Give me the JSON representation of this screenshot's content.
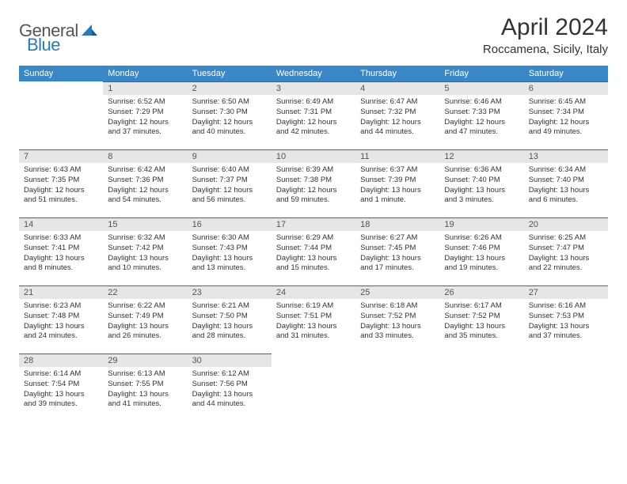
{
  "brand": {
    "general": "General",
    "blue": "Blue"
  },
  "title": "April 2024",
  "subtitle": "Roccamena, Sicily, Italy",
  "colors": {
    "header_bg": "#3a87c8",
    "header_text": "#ffffff",
    "daynum_bg": "#e6e6e6",
    "daynum_border": "#2a6ca0",
    "body_text": "#333333",
    "brand_gray": "#555555",
    "brand_blue": "#2a7ab9"
  },
  "day_labels": [
    "Sunday",
    "Monday",
    "Tuesday",
    "Wednesday",
    "Thursday",
    "Friday",
    "Saturday"
  ],
  "weeks": [
    [
      null,
      {
        "n": "1",
        "sr": "Sunrise: 6:52 AM",
        "ss": "Sunset: 7:29 PM",
        "d1": "Daylight: 12 hours",
        "d2": "and 37 minutes."
      },
      {
        "n": "2",
        "sr": "Sunrise: 6:50 AM",
        "ss": "Sunset: 7:30 PM",
        "d1": "Daylight: 12 hours",
        "d2": "and 40 minutes."
      },
      {
        "n": "3",
        "sr": "Sunrise: 6:49 AM",
        "ss": "Sunset: 7:31 PM",
        "d1": "Daylight: 12 hours",
        "d2": "and 42 minutes."
      },
      {
        "n": "4",
        "sr": "Sunrise: 6:47 AM",
        "ss": "Sunset: 7:32 PM",
        "d1": "Daylight: 12 hours",
        "d2": "and 44 minutes."
      },
      {
        "n": "5",
        "sr": "Sunrise: 6:46 AM",
        "ss": "Sunset: 7:33 PM",
        "d1": "Daylight: 12 hours",
        "d2": "and 47 minutes."
      },
      {
        "n": "6",
        "sr": "Sunrise: 6:45 AM",
        "ss": "Sunset: 7:34 PM",
        "d1": "Daylight: 12 hours",
        "d2": "and 49 minutes."
      }
    ],
    [
      {
        "n": "7",
        "sr": "Sunrise: 6:43 AM",
        "ss": "Sunset: 7:35 PM",
        "d1": "Daylight: 12 hours",
        "d2": "and 51 minutes."
      },
      {
        "n": "8",
        "sr": "Sunrise: 6:42 AM",
        "ss": "Sunset: 7:36 PM",
        "d1": "Daylight: 12 hours",
        "d2": "and 54 minutes."
      },
      {
        "n": "9",
        "sr": "Sunrise: 6:40 AM",
        "ss": "Sunset: 7:37 PM",
        "d1": "Daylight: 12 hours",
        "d2": "and 56 minutes."
      },
      {
        "n": "10",
        "sr": "Sunrise: 6:39 AM",
        "ss": "Sunset: 7:38 PM",
        "d1": "Daylight: 12 hours",
        "d2": "and 59 minutes."
      },
      {
        "n": "11",
        "sr": "Sunrise: 6:37 AM",
        "ss": "Sunset: 7:39 PM",
        "d1": "Daylight: 13 hours",
        "d2": "and 1 minute."
      },
      {
        "n": "12",
        "sr": "Sunrise: 6:36 AM",
        "ss": "Sunset: 7:40 PM",
        "d1": "Daylight: 13 hours",
        "d2": "and 3 minutes."
      },
      {
        "n": "13",
        "sr": "Sunrise: 6:34 AM",
        "ss": "Sunset: 7:40 PM",
        "d1": "Daylight: 13 hours",
        "d2": "and 6 minutes."
      }
    ],
    [
      {
        "n": "14",
        "sr": "Sunrise: 6:33 AM",
        "ss": "Sunset: 7:41 PM",
        "d1": "Daylight: 13 hours",
        "d2": "and 8 minutes."
      },
      {
        "n": "15",
        "sr": "Sunrise: 6:32 AM",
        "ss": "Sunset: 7:42 PM",
        "d1": "Daylight: 13 hours",
        "d2": "and 10 minutes."
      },
      {
        "n": "16",
        "sr": "Sunrise: 6:30 AM",
        "ss": "Sunset: 7:43 PM",
        "d1": "Daylight: 13 hours",
        "d2": "and 13 minutes."
      },
      {
        "n": "17",
        "sr": "Sunrise: 6:29 AM",
        "ss": "Sunset: 7:44 PM",
        "d1": "Daylight: 13 hours",
        "d2": "and 15 minutes."
      },
      {
        "n": "18",
        "sr": "Sunrise: 6:27 AM",
        "ss": "Sunset: 7:45 PM",
        "d1": "Daylight: 13 hours",
        "d2": "and 17 minutes."
      },
      {
        "n": "19",
        "sr": "Sunrise: 6:26 AM",
        "ss": "Sunset: 7:46 PM",
        "d1": "Daylight: 13 hours",
        "d2": "and 19 minutes."
      },
      {
        "n": "20",
        "sr": "Sunrise: 6:25 AM",
        "ss": "Sunset: 7:47 PM",
        "d1": "Daylight: 13 hours",
        "d2": "and 22 minutes."
      }
    ],
    [
      {
        "n": "21",
        "sr": "Sunrise: 6:23 AM",
        "ss": "Sunset: 7:48 PM",
        "d1": "Daylight: 13 hours",
        "d2": "and 24 minutes."
      },
      {
        "n": "22",
        "sr": "Sunrise: 6:22 AM",
        "ss": "Sunset: 7:49 PM",
        "d1": "Daylight: 13 hours",
        "d2": "and 26 minutes."
      },
      {
        "n": "23",
        "sr": "Sunrise: 6:21 AM",
        "ss": "Sunset: 7:50 PM",
        "d1": "Daylight: 13 hours",
        "d2": "and 28 minutes."
      },
      {
        "n": "24",
        "sr": "Sunrise: 6:19 AM",
        "ss": "Sunset: 7:51 PM",
        "d1": "Daylight: 13 hours",
        "d2": "and 31 minutes."
      },
      {
        "n": "25",
        "sr": "Sunrise: 6:18 AM",
        "ss": "Sunset: 7:52 PM",
        "d1": "Daylight: 13 hours",
        "d2": "and 33 minutes."
      },
      {
        "n": "26",
        "sr": "Sunrise: 6:17 AM",
        "ss": "Sunset: 7:52 PM",
        "d1": "Daylight: 13 hours",
        "d2": "and 35 minutes."
      },
      {
        "n": "27",
        "sr": "Sunrise: 6:16 AM",
        "ss": "Sunset: 7:53 PM",
        "d1": "Daylight: 13 hours",
        "d2": "and 37 minutes."
      }
    ],
    [
      {
        "n": "28",
        "sr": "Sunrise: 6:14 AM",
        "ss": "Sunset: 7:54 PM",
        "d1": "Daylight: 13 hours",
        "d2": "and 39 minutes."
      },
      {
        "n": "29",
        "sr": "Sunrise: 6:13 AM",
        "ss": "Sunset: 7:55 PM",
        "d1": "Daylight: 13 hours",
        "d2": "and 41 minutes."
      },
      {
        "n": "30",
        "sr": "Sunrise: 6:12 AM",
        "ss": "Sunset: 7:56 PM",
        "d1": "Daylight: 13 hours",
        "d2": "and 44 minutes."
      },
      null,
      null,
      null,
      null
    ]
  ]
}
